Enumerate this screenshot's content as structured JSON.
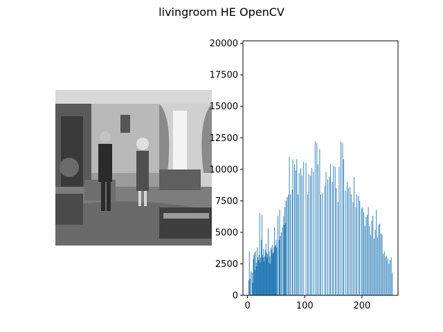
{
  "figure": {
    "title": "livingroom HE OpenCV",
    "image_panel": {
      "description_icon": "grayscale-photo-icon"
    }
  },
  "chart_data": {
    "type": "bar",
    "title": "",
    "xlabel": "",
    "ylabel": "",
    "xlim": [
      -8,
      263
    ],
    "ylim": [
      0,
      20200
    ],
    "xticks": [
      0,
      100,
      200
    ],
    "yticks": [
      0,
      2500,
      5000,
      7500,
      10000,
      12500,
      15000,
      17500,
      20000
    ],
    "bar_color": "#1f77b4",
    "series": [
      {
        "x": [
          0,
          1,
          2,
          3,
          4,
          5,
          6,
          7,
          8,
          9,
          10,
          11,
          12,
          13,
          14,
          15,
          16,
          17,
          18,
          19,
          20,
          21,
          22,
          23,
          24,
          25,
          26,
          27,
          28,
          29,
          30,
          31,
          32,
          33,
          34,
          35,
          36,
          37,
          38,
          39,
          40,
          41,
          42,
          43,
          44,
          45,
          46,
          47,
          48,
          49,
          50,
          51,
          52,
          53,
          54,
          55,
          56,
          57,
          58,
          59,
          60,
          61,
          62,
          63,
          64,
          65,
          66,
          67,
          68,
          69,
          70,
          71,
          72,
          73,
          74,
          75,
          76,
          77,
          78,
          79,
          80,
          81,
          82,
          83,
          84,
          85,
          86,
          87,
          88,
          89,
          90,
          91,
          92,
          93,
          94,
          95,
          96,
          97,
          98,
          99,
          100,
          101,
          102,
          103,
          104,
          105,
          106,
          107,
          108,
          109,
          110,
          111,
          112,
          113,
          114,
          115,
          116,
          117,
          118,
          119,
          120,
          121,
          122,
          123,
          124,
          125,
          126,
          127,
          128,
          129,
          130,
          131,
          132,
          133,
          134,
          135,
          136,
          137,
          138,
          139,
          140,
          141,
          142,
          143,
          144,
          145,
          146,
          147,
          148,
          149,
          150,
          151,
          152,
          153,
          154,
          155,
          156,
          157,
          158,
          159,
          160,
          161,
          162,
          163,
          164,
          165,
          166,
          167,
          168,
          169,
          170,
          171,
          172,
          173,
          174,
          175,
          176,
          177,
          178,
          179,
          180,
          181,
          182,
          183,
          184,
          185,
          186,
          187,
          188,
          189,
          190,
          191,
          192,
          193,
          194,
          195,
          196,
          197,
          198,
          199,
          200,
          201,
          202,
          203,
          204,
          205,
          206,
          207,
          208,
          209,
          210,
          211,
          212,
          213,
          214,
          215,
          216,
          217,
          218,
          219,
          220,
          221,
          222,
          223,
          224,
          225,
          226,
          227,
          228,
          229,
          230,
          231,
          232,
          233,
          234,
          235,
          236,
          237,
          238,
          239,
          240,
          241,
          242,
          243,
          244,
          245,
          246,
          247,
          248,
          249,
          250,
          251,
          252,
          253,
          254,
          255
        ],
        "values": [
          0,
          0,
          1200,
          3500,
          1300,
          0,
          1900,
          0,
          1800,
          1000,
          2900,
          3200,
          3400,
          2000,
          3500,
          2600,
          2300,
          3800,
          3000,
          2800,
          3200,
          6500,
          2600,
          3000,
          4400,
          6400,
          3200,
          3000,
          3700,
          2700,
          3100,
          3600,
          4100,
          3400,
          3000,
          3300,
          5300,
          2600,
          3500,
          3100,
          2500,
          3800,
          3600,
          4000,
          3300,
          3400,
          3800,
          5400,
          3900,
          4000,
          4400,
          3800,
          0,
          6300,
          0,
          4400,
          6800,
          4700,
          0,
          5000,
          0,
          5400,
          0,
          6300,
          5600,
          7000,
          5700,
          7500,
          0,
          7800,
          0,
          8000,
          0,
          11000,
          0,
          8000,
          0,
          0,
          8400,
          10800,
          0,
          0,
          10400,
          0,
          9900,
          0,
          10800,
          0,
          8000,
          0,
          9700,
          0,
          0,
          10100,
          0,
          9500,
          0,
          0,
          10600,
          0,
          0,
          0,
          10500,
          0,
          0,
          8000,
          0,
          9600,
          0,
          0,
          9500,
          0,
          10100,
          0,
          0,
          9800,
          0,
          0,
          12200,
          0,
          0,
          12100,
          0,
          10400,
          0,
          0,
          11600,
          0,
          8000,
          0,
          0,
          8100,
          0,
          0,
          0,
          8700,
          0,
          9800,
          0,
          0,
          9200,
          0,
          0,
          9400,
          0,
          10400,
          0,
          0,
          9000,
          0,
          10300,
          0,
          0,
          10200,
          0,
          8500,
          0,
          0,
          7400,
          0,
          10200,
          0,
          0,
          12200,
          0,
          0,
          12100,
          0,
          10800,
          0,
          0,
          8300,
          0,
          0,
          9000,
          0,
          8500,
          0,
          0,
          8600,
          0,
          8000,
          0,
          0,
          7400,
          0,
          9400,
          0,
          0,
          7000,
          0,
          8000,
          0,
          0,
          7900,
          0,
          7500,
          0,
          0,
          6900,
          0,
          7000,
          0,
          6600,
          0,
          5500,
          0,
          6200,
          0,
          6400,
          0,
          7000,
          0,
          5500,
          0,
          4800,
          0,
          5900,
          0,
          6300,
          0,
          4500,
          0,
          5200,
          0,
          6800,
          0,
          4600,
          0,
          5600,
          0,
          5700,
          0,
          4900,
          0,
          4800,
          0,
          3300,
          0,
          3500,
          0,
          3000,
          0,
          3100,
          0,
          2900,
          0,
          2500,
          0,
          2800,
          0,
          3000,
          0,
          1800,
          0,
          0
        ]
      }
    ]
  }
}
